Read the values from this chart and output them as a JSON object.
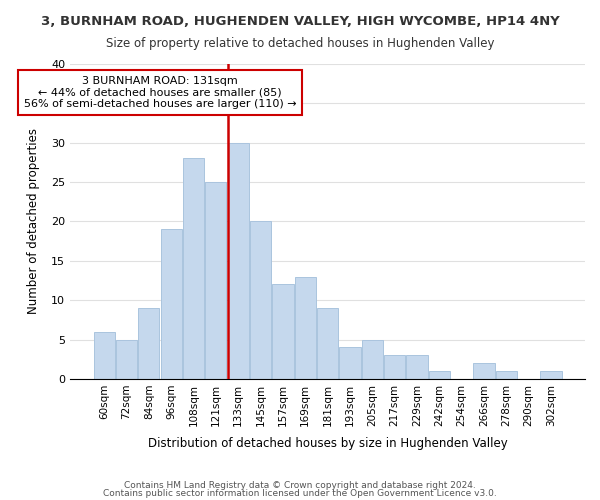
{
  "title": "3, BURNHAM ROAD, HUGHENDEN VALLEY, HIGH WYCOMBE, HP14 4NY",
  "subtitle": "Size of property relative to detached houses in Hughenden Valley",
  "xlabel": "Distribution of detached houses by size in Hughenden Valley",
  "ylabel": "Number of detached properties",
  "bar_color": "#c5d8ed",
  "bar_edge_color": "#aac4de",
  "bin_labels": [
    "60sqm",
    "72sqm",
    "84sqm",
    "96sqm",
    "108sqm",
    "121sqm",
    "133sqm",
    "145sqm",
    "157sqm",
    "169sqm",
    "181sqm",
    "193sqm",
    "205sqm",
    "217sqm",
    "229sqm",
    "242sqm",
    "254sqm",
    "266sqm",
    "278sqm",
    "290sqm",
    "302sqm"
  ],
  "bar_heights": [
    6,
    5,
    9,
    19,
    28,
    25,
    30,
    20,
    12,
    13,
    9,
    4,
    5,
    3,
    3,
    1,
    0,
    2,
    1,
    0,
    1
  ],
  "marker_index": 6,
  "marker_label": "3 BURNHAM ROAD: 131sqm",
  "annotation_line1": "← 44% of detached houses are smaller (85)",
  "annotation_line2": "56% of semi-detached houses are larger (110) →",
  "ylim": [
    0,
    40
  ],
  "yticks": [
    0,
    5,
    10,
    15,
    20,
    25,
    30,
    35,
    40
  ],
  "footer1": "Contains HM Land Registry data © Crown copyright and database right 2024.",
  "footer2": "Contains public sector information licensed under the Open Government Licence v3.0.",
  "background_color": "#ffffff",
  "grid_color": "#e0e0e0",
  "annotation_box_color": "#ffffff",
  "annotation_box_edge": "#cc0000",
  "marker_line_color": "#cc0000"
}
